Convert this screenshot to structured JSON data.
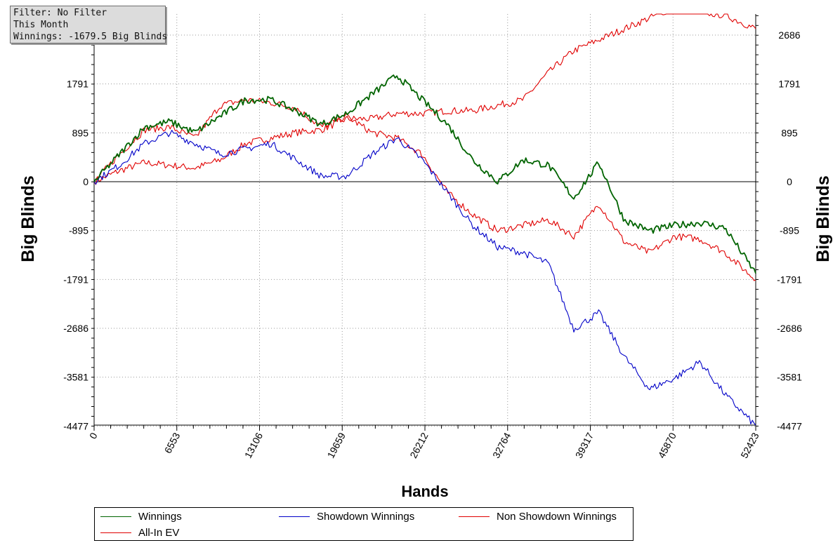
{
  "info": {
    "filter": "Filter: No Filter",
    "period": "This Month",
    "winnings": "Winnings: -1679.5 Big Blinds"
  },
  "colors": {
    "winnings": "#006400",
    "showdown": "#0000c8",
    "non_showdown": "#e00000",
    "allin_ev": "#e00000"
  },
  "chart_data": {
    "type": "line",
    "xlabel": "Hands",
    "ylabel": "Big Blinds",
    "xlim": [
      0,
      52423
    ],
    "ylim": [
      -4477,
      3150
    ],
    "x_ticks": [
      "0",
      "6553",
      "13106",
      "19659",
      "26212",
      "32764",
      "39317",
      "45870",
      "52423"
    ],
    "y_ticks": [
      "2686",
      "1791",
      "895",
      "0",
      "-895",
      "-1791",
      "-2686",
      "-3581",
      "-4477"
    ],
    "y_tick_values": [
      2686,
      1791,
      895,
      0,
      -895,
      -1791,
      -2686,
      -3581,
      -4477
    ],
    "x": [
      0,
      2000,
      4000,
      6000,
      8000,
      10000,
      12000,
      14000,
      16000,
      18000,
      20000,
      22000,
      24000,
      26000,
      28000,
      30000,
      32000,
      34000,
      36000,
      38000,
      40000,
      42000,
      44000,
      46000,
      48000,
      50000,
      52423
    ],
    "grid": true,
    "legend_placement": "bottom",
    "series": [
      {
        "name": "Winnings",
        "color_key": "winnings",
        "values": [
          0,
          500,
          1000,
          1100,
          900,
          1200,
          1500,
          1500,
          1300,
          1050,
          1250,
          1600,
          1950,
          1500,
          1050,
          400,
          0,
          400,
          300,
          -300,
          350,
          -700,
          -900,
          -800,
          -750,
          -850,
          -1680
        ]
      },
      {
        "name": "Showdown Winnings",
        "color_key": "showdown",
        "values": [
          0,
          300,
          700,
          900,
          700,
          500,
          600,
          700,
          400,
          100,
          100,
          500,
          800,
          400,
          -200,
          -800,
          -1200,
          -1300,
          -1500,
          -2700,
          -2400,
          -3200,
          -3800,
          -3600,
          -3300,
          -3900,
          -4477
        ]
      },
      {
        "name": "Non Showdown Winnings",
        "color_key": "non_showdown",
        "values": [
          0,
          200,
          350,
          300,
          250,
          400,
          700,
          800,
          900,
          950,
          1150,
          1150,
          1250,
          1250,
          1300,
          1300,
          1400,
          1500,
          2000,
          2400,
          2600,
          2800,
          3000,
          3200,
          3100,
          3050,
          2800
        ]
      },
      {
        "name": "All-In EV",
        "color_key": "allin_ev",
        "values": [
          0,
          500,
          950,
          1000,
          800,
          1400,
          1500,
          1450,
          1350,
          1000,
          1200,
          900,
          800,
          500,
          -200,
          -600,
          -900,
          -800,
          -700,
          -1000,
          -400,
          -1100,
          -1300,
          -1000,
          -1050,
          -1300,
          -1800
        ]
      }
    ]
  },
  "legend": {
    "items": [
      {
        "label": "Winnings",
        "color_key": "winnings"
      },
      {
        "label": "Showdown Winnings",
        "color_key": "showdown"
      },
      {
        "label": "Non Showdown Winnings",
        "color_key": "non_showdown"
      },
      {
        "label": "All-In EV",
        "color_key": "allin_ev"
      }
    ]
  }
}
